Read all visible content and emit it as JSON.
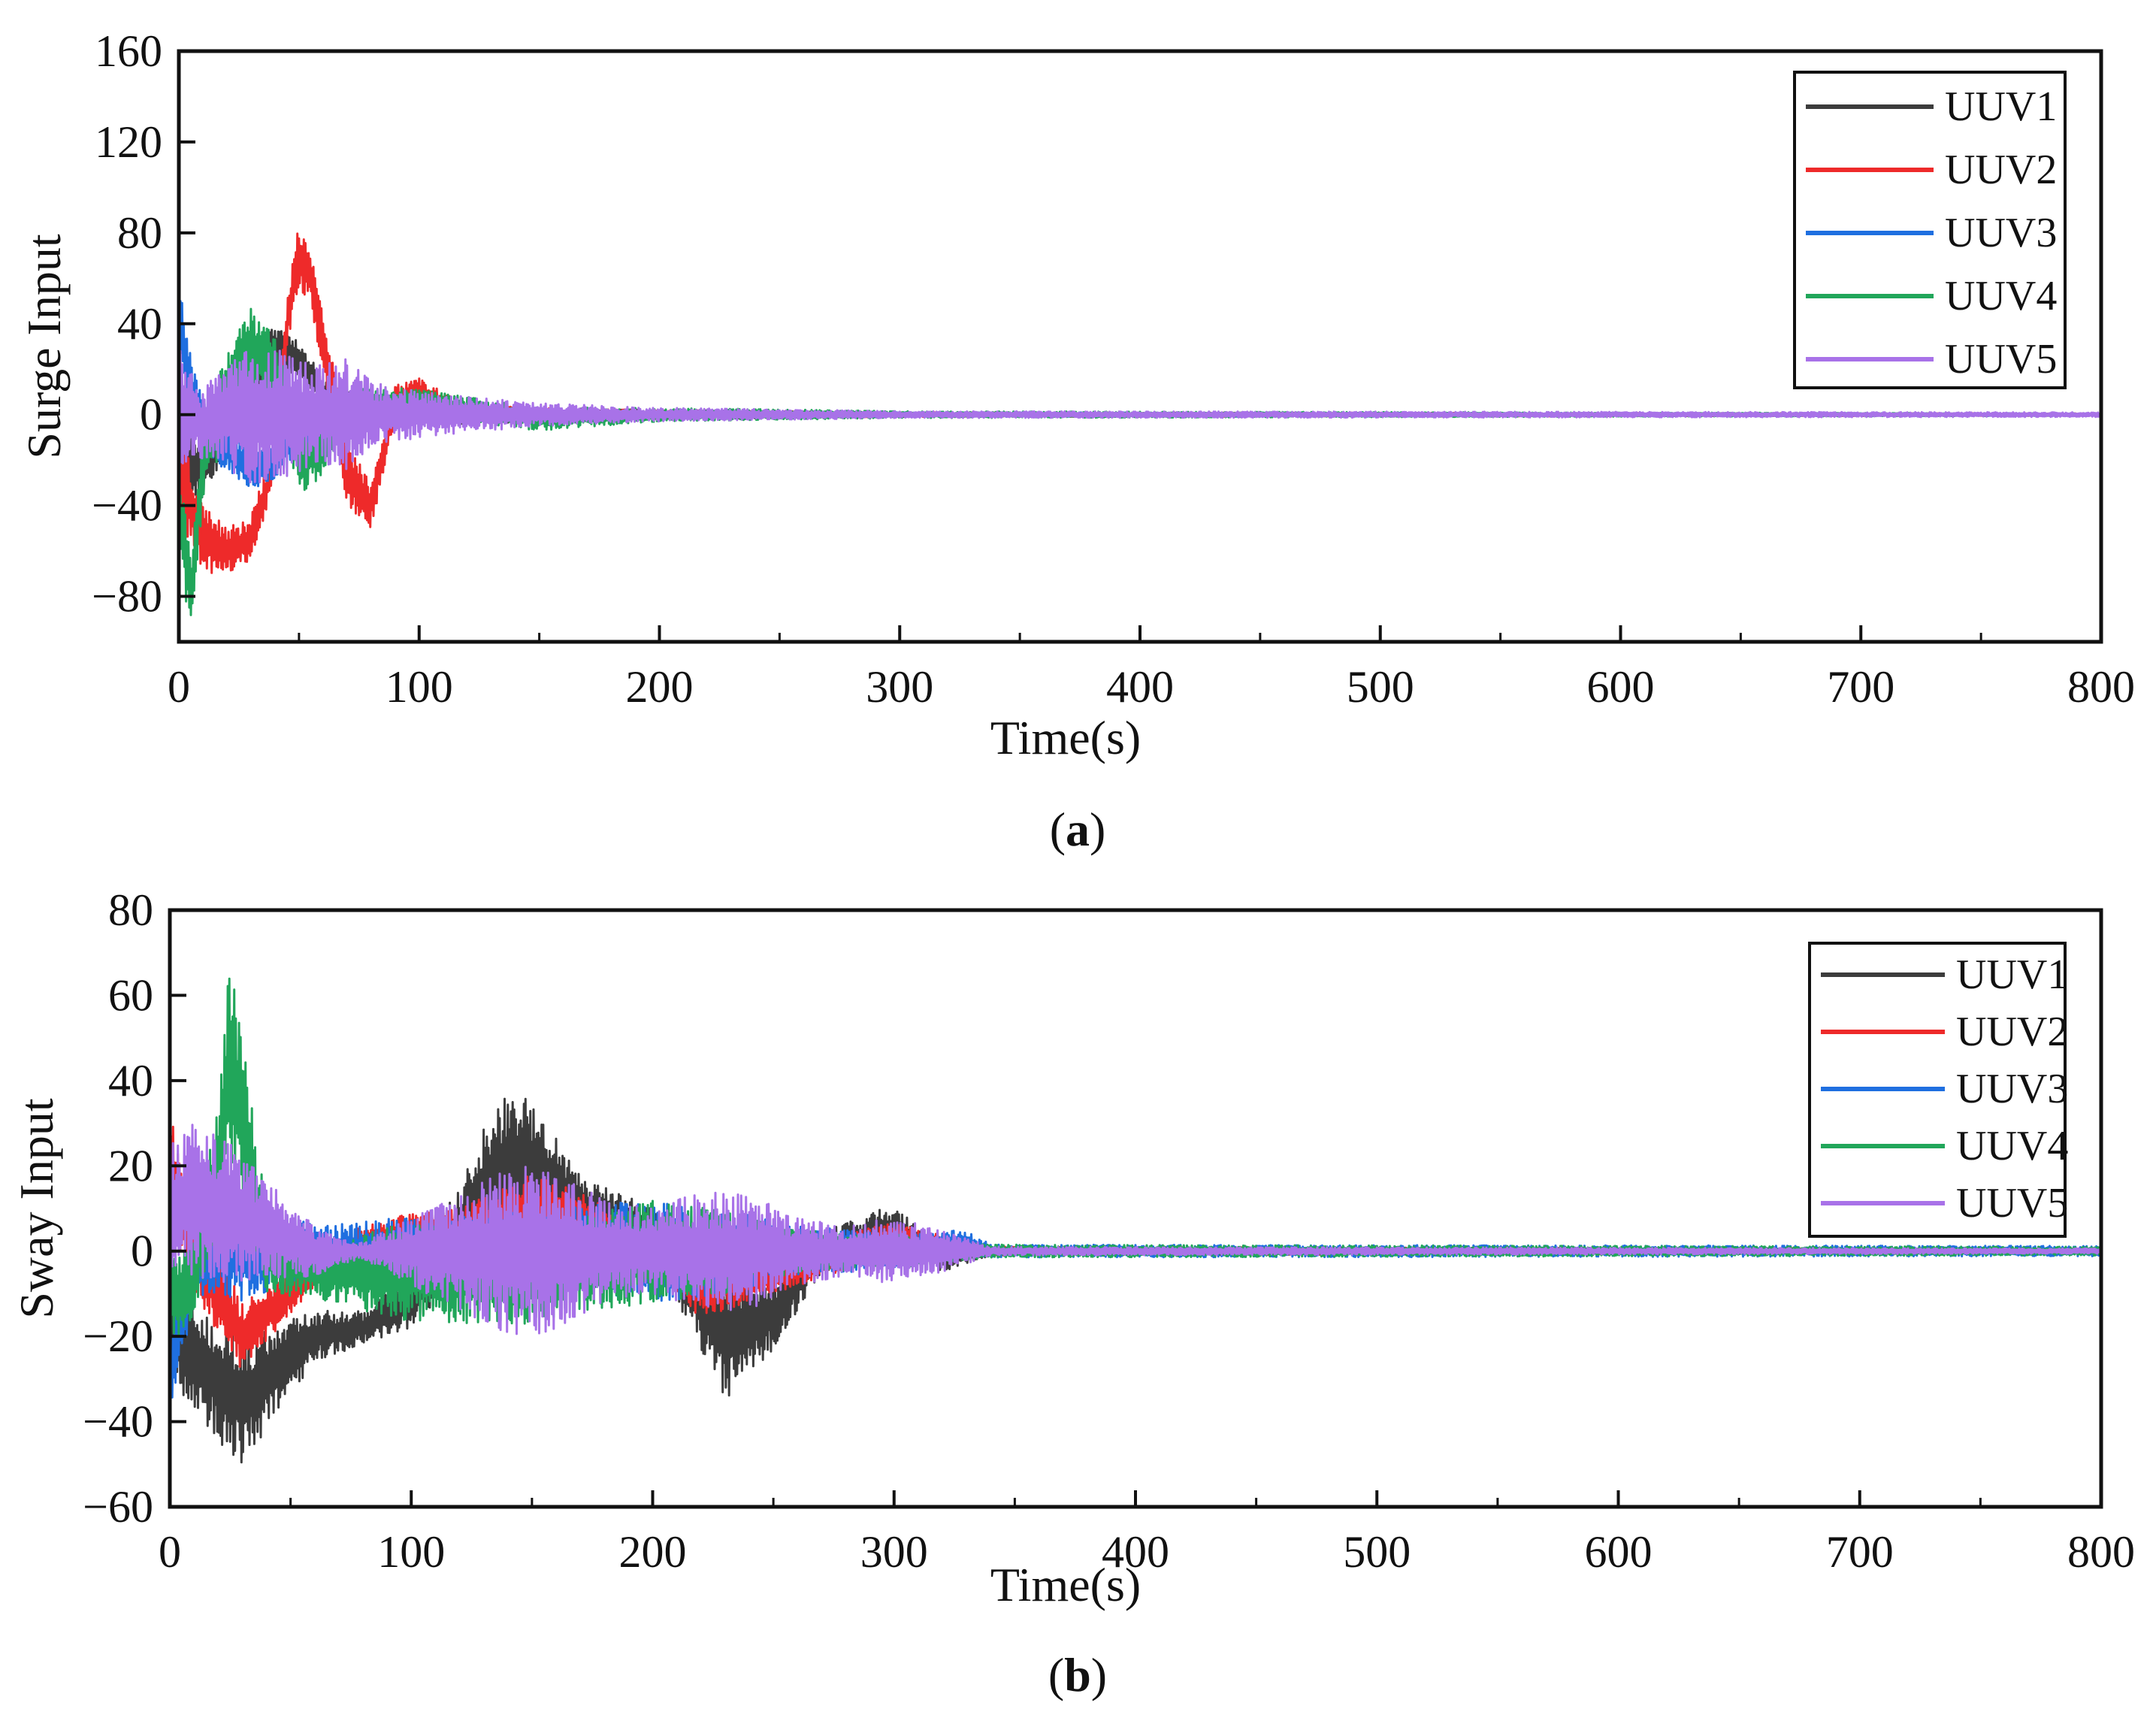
{
  "figure": {
    "panels": [
      {
        "caption_label": "a"
      },
      {
        "caption_label": "b"
      }
    ]
  },
  "colors": {
    "UUV1": "#3c3c3c",
    "UUV2": "#ee2a2a",
    "UUV3": "#1f6fe0",
    "UUV4": "#21a65a",
    "UUV5": "#a872e8"
  },
  "chart_data": [
    {
      "type": "line",
      "title": "",
      "xlabel": "Time(s)",
      "ylabel": "Surge Input",
      "xlim": [
        0,
        800
      ],
      "ylim": [
        -100,
        160
      ],
      "xticks": [
        0,
        100,
        200,
        300,
        400,
        500,
        600,
        700,
        800
      ],
      "yticks": [
        -80,
        -40,
        0,
        40,
        80,
        120,
        160
      ],
      "x_tick_labels": [
        "0",
        "100",
        "200",
        "300",
        "400",
        "500",
        "600",
        "700",
        "800"
      ],
      "y_tick_labels": [
        "−80",
        "−40",
        "0",
        "40",
        "80",
        "120",
        "160"
      ],
      "legend": {
        "position": "top-right",
        "entries": [
          "UUV1",
          "UUV2",
          "UUV3",
          "UUV4",
          "UUV5"
        ]
      },
      "series": [
        {
          "name": "UUV1",
          "time": [
            0,
            5,
            10,
            20,
            30,
            40,
            50,
            60,
            80,
            100,
            150,
            200,
            300,
            800
          ],
          "center": [
            -35,
            -20,
            -25,
            -5,
            10,
            30,
            25,
            10,
            0,
            0,
            0,
            0,
            0,
            0
          ],
          "amplitude": [
            15,
            15,
            12,
            10,
            12,
            10,
            8,
            6,
            6,
            5,
            3,
            2,
            1,
            0.5
          ]
        },
        {
          "name": "UUV2",
          "time": [
            0,
            5,
            10,
            20,
            30,
            40,
            45,
            50,
            55,
            60,
            70,
            80,
            90,
            100,
            120,
            150,
            200,
            300,
            800
          ],
          "center": [
            -20,
            -40,
            -55,
            -60,
            -55,
            -20,
            40,
            70,
            60,
            30,
            -25,
            -40,
            5,
            10,
            0,
            0,
            0,
            0,
            0
          ],
          "amplitude": [
            25,
            20,
            15,
            10,
            10,
            10,
            12,
            15,
            12,
            15,
            15,
            10,
            8,
            6,
            4,
            3,
            2,
            1,
            0.5
          ]
        },
        {
          "name": "UUV3",
          "time": [
            0,
            5,
            10,
            20,
            30,
            40,
            50,
            60,
            80,
            100,
            150,
            200,
            300,
            800
          ],
          "center": [
            45,
            10,
            -5,
            -15,
            -25,
            -20,
            -10,
            -5,
            0,
            0,
            0,
            0,
            0,
            0
          ],
          "amplitude": [
            15,
            15,
            12,
            10,
            8,
            8,
            6,
            5,
            4,
            3,
            2,
            1.5,
            1,
            0.5
          ]
        },
        {
          "name": "UUV4",
          "time": [
            0,
            5,
            10,
            20,
            30,
            40,
            50,
            60,
            70,
            80,
            100,
            150,
            200,
            300,
            800
          ],
          "center": [
            -40,
            -80,
            -20,
            10,
            30,
            20,
            -20,
            -15,
            0,
            5,
            5,
            -2,
            0,
            0,
            0
          ],
          "amplitude": [
            25,
            15,
            20,
            20,
            18,
            15,
            15,
            12,
            10,
            8,
            6,
            5,
            3,
            1.5,
            0.5
          ]
        },
        {
          "name": "UUV5",
          "time": [
            0,
            5,
            10,
            20,
            30,
            40,
            50,
            60,
            70,
            80,
            100,
            150,
            200,
            300,
            800
          ],
          "center": [
            5,
            0,
            -5,
            0,
            0,
            0,
            0,
            0,
            0,
            0,
            0,
            0,
            0,
            0,
            0
          ],
          "amplitude": [
            30,
            20,
            15,
            25,
            30,
            30,
            25,
            22,
            25,
            15,
            10,
            5,
            3,
            1.5,
            1
          ]
        }
      ]
    },
    {
      "type": "line",
      "title": "",
      "xlabel": "Time(s)",
      "ylabel": "Sway Input",
      "xlim": [
        0,
        800
      ],
      "ylim": [
        -60,
        80
      ],
      "xticks": [
        0,
        100,
        200,
        300,
        400,
        500,
        600,
        700,
        800
      ],
      "yticks": [
        -60,
        -40,
        -20,
        0,
        20,
        40,
        60,
        80
      ],
      "x_tick_labels": [
        "0",
        "100",
        "200",
        "300",
        "400",
        "500",
        "600",
        "700",
        "800"
      ],
      "y_tick_labels": [
        "−60",
        "−40",
        "−20",
        "0",
        "20",
        "40",
        "60",
        "80"
      ],
      "legend": {
        "position": "top-right",
        "entries": [
          "UUV1",
          "UUV2",
          "UUV3",
          "UUV4",
          "UUV5"
        ]
      },
      "series": [
        {
          "name": "UUV1",
          "time": [
            0,
            10,
            20,
            30,
            40,
            60,
            80,
            100,
            120,
            140,
            150,
            170,
            200,
            230,
            250,
            270,
            300,
            320,
            340,
            800
          ],
          "center": [
            -20,
            -25,
            -30,
            -35,
            -30,
            -20,
            -18,
            -12,
            5,
            20,
            20,
            10,
            5,
            -20,
            -15,
            0,
            5,
            -2,
            0,
            0
          ],
          "amplitude": [
            10,
            12,
            15,
            15,
            12,
            6,
            4,
            6,
            12,
            20,
            15,
            8,
            5,
            15,
            8,
            5,
            6,
            3,
            1,
            0.5
          ]
        },
        {
          "name": "UUV2",
          "time": [
            0,
            5,
            10,
            20,
            30,
            40,
            60,
            80,
            100,
            120,
            150,
            170,
            200,
            220,
            250,
            300,
            320,
            340,
            800
          ],
          "center": [
            20,
            10,
            0,
            -10,
            -20,
            -15,
            -5,
            2,
            5,
            5,
            10,
            8,
            0,
            -8,
            -5,
            3,
            2,
            0,
            0
          ],
          "amplitude": [
            12,
            12,
            10,
            10,
            8,
            6,
            4,
            4,
            4,
            5,
            8,
            6,
            4,
            8,
            5,
            4,
            2,
            1,
            0.5
          ]
        },
        {
          "name": "UUV3",
          "time": [
            0,
            5,
            10,
            20,
            30,
            40,
            60,
            100,
            150,
            200,
            230,
            260,
            300,
            330,
            340,
            800
          ],
          "center": [
            -30,
            -15,
            -5,
            0,
            0,
            0,
            0,
            0,
            0,
            0,
            0,
            0,
            0,
            2,
            0,
            0
          ],
          "amplitude": [
            10,
            10,
            8,
            10,
            12,
            10,
            6,
            8,
            10,
            12,
            10,
            6,
            4,
            3,
            1.5,
            1.2
          ]
        },
        {
          "name": "UUV4",
          "time": [
            0,
            5,
            10,
            20,
            25,
            30,
            40,
            60,
            100,
            150,
            200,
            230,
            260,
            300,
            340,
            800
          ],
          "center": [
            -10,
            -10,
            -5,
            20,
            45,
            30,
            0,
            -5,
            -5,
            -5,
            0,
            0,
            0,
            0,
            0,
            0
          ],
          "amplitude": [
            10,
            10,
            10,
            15,
            25,
            20,
            10,
            6,
            12,
            12,
            12,
            10,
            5,
            4,
            1.5,
            1
          ]
        },
        {
          "name": "UUV5",
          "time": [
            0,
            10,
            20,
            40,
            60,
            70,
            80,
            100,
            140,
            160,
            180,
            200,
            220,
            240,
            260,
            280,
            300,
            320,
            340,
            800
          ],
          "center": [
            10,
            12,
            10,
            5,
            0,
            0,
            0,
            0,
            0,
            0,
            0,
            0,
            0,
            0,
            0,
            0,
            0,
            0,
            0,
            0
          ],
          "amplitude": [
            15,
            18,
            18,
            12,
            6,
            3,
            2,
            8,
            20,
            20,
            12,
            10,
            14,
            14,
            8,
            6,
            8,
            5,
            1,
            0.6
          ]
        }
      ]
    }
  ]
}
